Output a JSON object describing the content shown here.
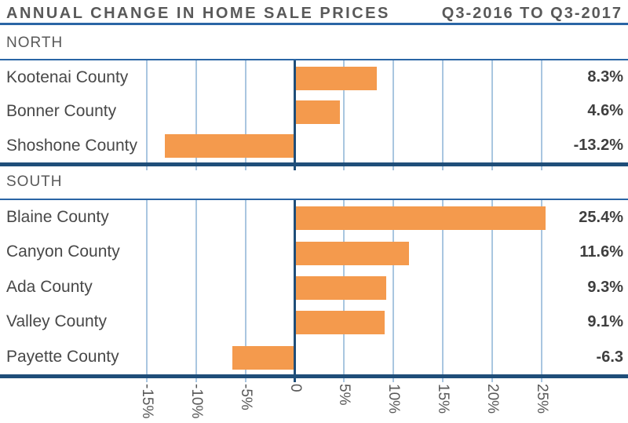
{
  "header": {
    "title": "ANNUAL CHANGE IN HOME SALE PRICES",
    "period": "Q3-2016 TO Q3-2017"
  },
  "colors": {
    "bar_orange": "#F49A4D",
    "navy": "#1F4E79",
    "blue_line": "#2A65A5",
    "gridline_blue": "#A9C6E0",
    "heading_text": "#595959",
    "label_text": "#484848",
    "value_text": "#3F3F3F"
  },
  "chart_data": {
    "type": "bar",
    "orientation": "horizontal",
    "title": "ANNUAL CHANGE IN HOME SALE PRICES",
    "subtitle": "Q3-2016 TO Q3-2017",
    "unit": "percent",
    "xlim": [
      -15,
      25
    ],
    "grid": true,
    "gridlines_at": [
      -15,
      -10,
      -5,
      0,
      5,
      10,
      15,
      20,
      25
    ],
    "x_tick_labels": [
      "-15%",
      "-10%",
      "-5%",
      "0",
      "5%",
      "10%",
      "15%",
      "20%",
      "25%"
    ],
    "x_tick_values": [
      -15,
      -10,
      -5,
      0,
      5,
      10,
      15,
      20,
      25
    ],
    "groups": [
      {
        "name": "NORTH",
        "rows": [
          {
            "label": "Kootenai County",
            "value": 8.3,
            "value_label": "8.3%"
          },
          {
            "label": "Bonner County",
            "value": 4.6,
            "value_label": "4.6%"
          },
          {
            "label": "Shoshone County",
            "value": -13.2,
            "value_label": "-13.2%"
          }
        ]
      },
      {
        "name": "SOUTH",
        "rows": [
          {
            "label": "Blaine County",
            "value": 25.4,
            "value_label": "25.4%"
          },
          {
            "label": "Canyon County",
            "value": 11.6,
            "value_label": "11.6%"
          },
          {
            "label": "Ada County",
            "value": 9.3,
            "value_label": "9.3%"
          },
          {
            "label": "Valley County",
            "value": 9.1,
            "value_label": "9.1%"
          },
          {
            "label": "Payette County",
            "value": -6.3,
            "value_label": "-6.3"
          }
        ]
      }
    ]
  }
}
